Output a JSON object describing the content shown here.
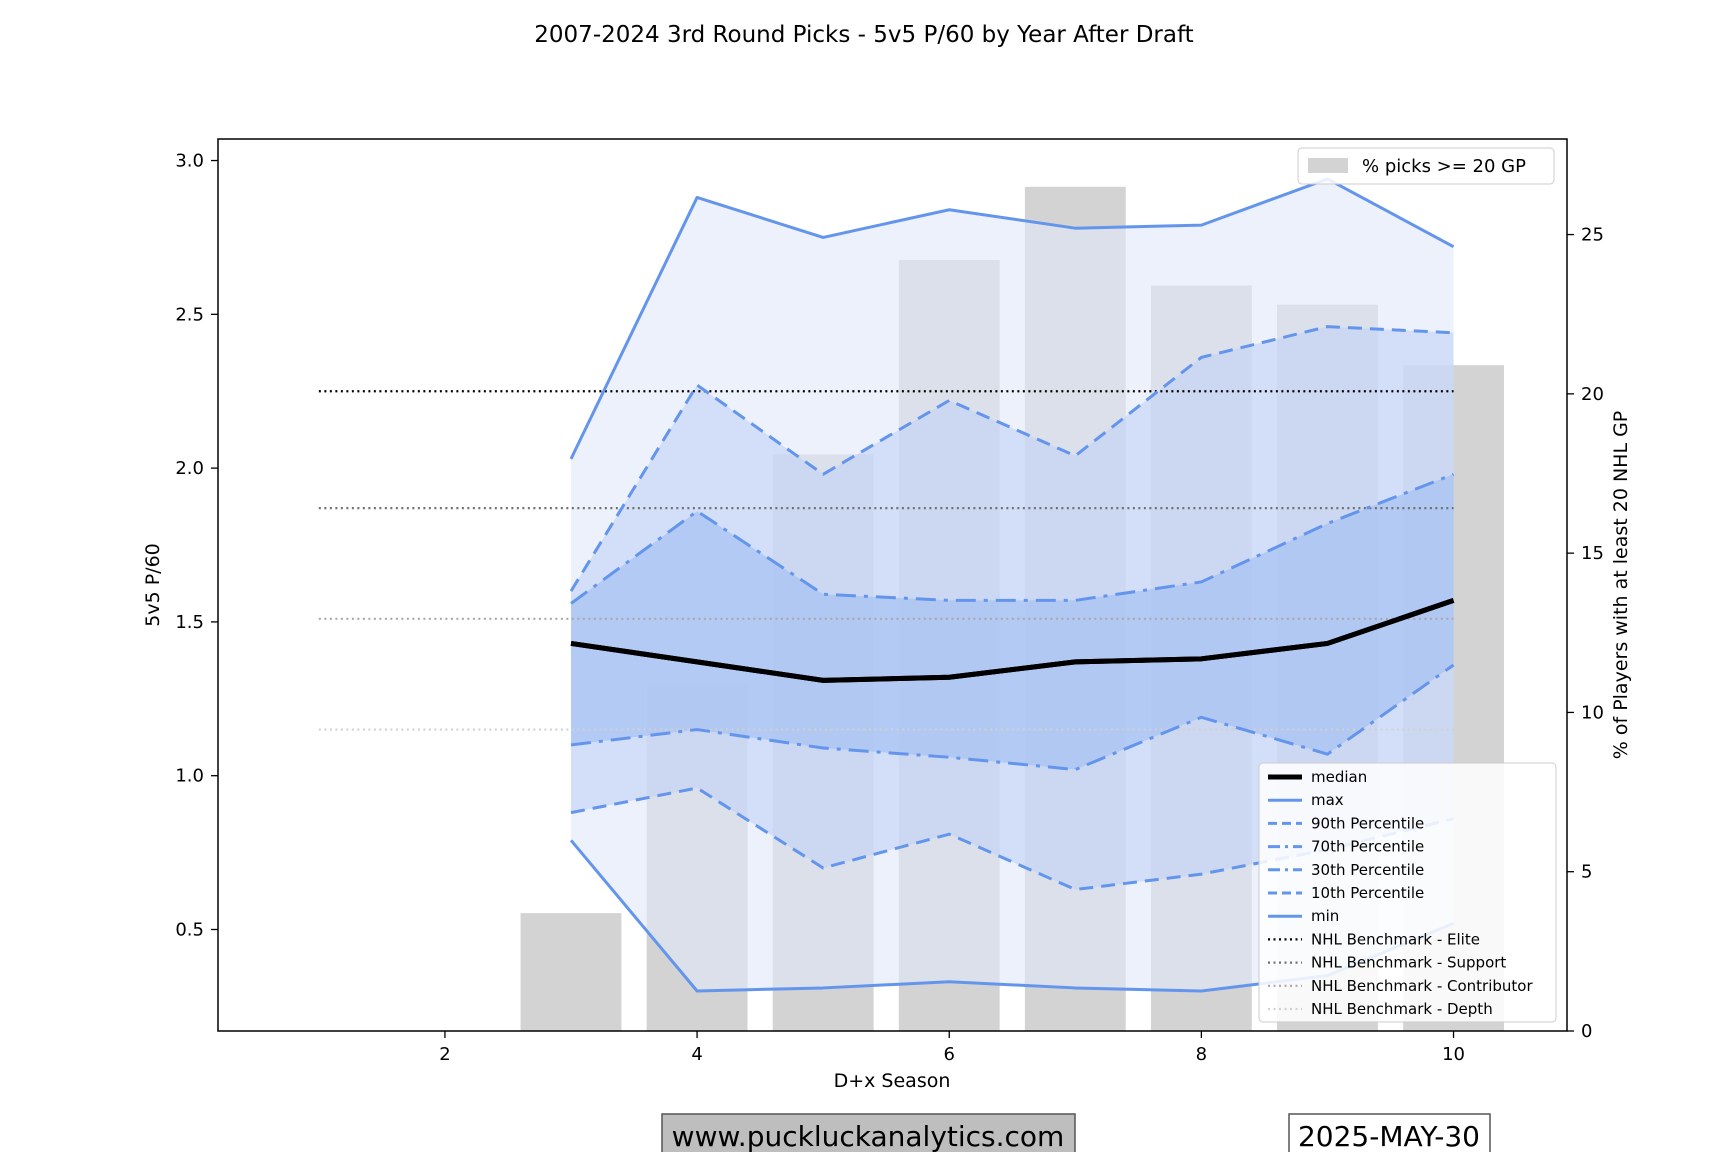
{
  "chart_data": {
    "type": "line",
    "title": "2007-2024 3rd Round Picks - 5v5 P/60 by Year After Draft",
    "xlabel": "D+x Season",
    "ylabel": "5v5 P/60",
    "y2label": "% of Players with at least 20 NHL GP",
    "xlim": [
      0.2,
      10.9
    ],
    "ylim": [
      0.17,
      3.07
    ],
    "y2lim": [
      0,
      28
    ],
    "xticks": [
      2,
      4,
      6,
      8,
      10
    ],
    "yticks": [
      0.5,
      1.0,
      1.5,
      2.0,
      2.5,
      3.0
    ],
    "y2ticks": [
      0,
      5,
      10,
      15,
      20,
      25
    ],
    "x": [
      3,
      4,
      5,
      6,
      7,
      8,
      9,
      10
    ],
    "series": [
      {
        "name": "median",
        "style": "solid-thick",
        "values": [
          1.43,
          1.37,
          1.31,
          1.32,
          1.37,
          1.38,
          1.43,
          1.57
        ]
      },
      {
        "name": "max",
        "style": "solid",
        "values": [
          2.03,
          2.88,
          2.75,
          2.84,
          2.78,
          2.79,
          2.94,
          2.72
        ]
      },
      {
        "name": "90th Percentile",
        "style": "dashed",
        "values": [
          1.6,
          2.27,
          1.98,
          2.22,
          2.04,
          2.36,
          2.46,
          2.44
        ]
      },
      {
        "name": "70th Percentile",
        "style": "dashdot",
        "values": [
          1.56,
          1.86,
          1.59,
          1.57,
          1.57,
          1.63,
          1.82,
          1.98
        ]
      },
      {
        "name": "30th Percentile",
        "style": "dashdot",
        "values": [
          1.1,
          1.15,
          1.09,
          1.06,
          1.02,
          1.19,
          1.07,
          1.36
        ]
      },
      {
        "name": "10th Percentile",
        "style": "dashed",
        "values": [
          0.88,
          0.96,
          0.7,
          0.81,
          0.63,
          0.68,
          0.76,
          0.86
        ]
      },
      {
        "name": "min",
        "style": "solid",
        "values": [
          0.79,
          0.3,
          0.31,
          0.33,
          0.31,
          0.3,
          0.35,
          0.52
        ]
      }
    ],
    "benchmarks": [
      {
        "name": "NHL Benchmark - Elite",
        "value": 2.25,
        "color": "#000000"
      },
      {
        "name": "NHL Benchmark - Support",
        "value": 1.87,
        "color": "#707070"
      },
      {
        "name": "NHL Benchmark - Contributor",
        "value": 1.51,
        "color": "#a8a8a8"
      },
      {
        "name": "NHL Benchmark - Depth",
        "value": 1.15,
        "color": "#d0d0d0"
      }
    ],
    "benchmark_x_range": [
      1,
      10
    ],
    "bars": {
      "name": "% picks >= 20 GP",
      "x": [
        3,
        4,
        5,
        6,
        7,
        8,
        9,
        10
      ],
      "values": [
        3.7,
        10.9,
        18.1,
        24.2,
        26.5,
        23.4,
        22.8,
        20.9
      ]
    },
    "legend_bars_position": "top-right",
    "legend_lines_position": "lower-right",
    "colors": {
      "line": "#6495ed",
      "bar": "#d3d3d3",
      "band_outer": "#e0e8f8",
      "band_mid": "#c3d4f6",
      "band_inner": "#a0bff2",
      "median": "#000000"
    }
  },
  "footer": {
    "website": "www.puckluckanalytics.com",
    "date": "2025-MAY-30"
  }
}
